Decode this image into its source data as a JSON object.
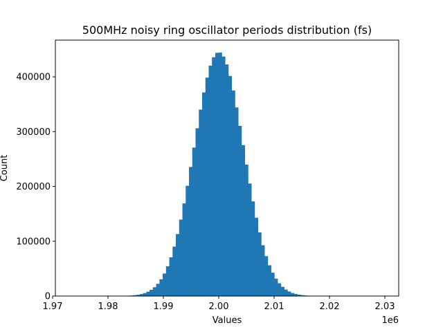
{
  "chart_data": {
    "type": "bar",
    "title": "500MHz noisy ring oscillator periods distribution (fs)",
    "xlabel": "Values",
    "ylabel": "Count",
    "x_offset_label": "1e6",
    "xlim": [
      1.9705,
      2.0325
    ],
    "ylim": [
      0,
      467000
    ],
    "x_ticks": [
      1.97,
      1.98,
      1.99,
      2.0,
      2.01,
      2.02,
      2.03
    ],
    "x_tick_labels": [
      "1.97",
      "1.98",
      "1.99",
      "2.00",
      "2.01",
      "2.02",
      "2.03"
    ],
    "y_ticks": [
      0,
      100000,
      200000,
      300000,
      400000
    ],
    "y_tick_labels": [
      "0",
      "100000",
      "200000",
      "300000",
      "400000"
    ],
    "bar_color": "#1f77b4",
    "histogram": {
      "mean": 2.0,
      "std": 0.0045,
      "peak_count": 445000,
      "bin_start": 1.9715,
      "bin_width": 0.000593,
      "bin_count": 100
    },
    "grid": false,
    "legend": "none"
  }
}
